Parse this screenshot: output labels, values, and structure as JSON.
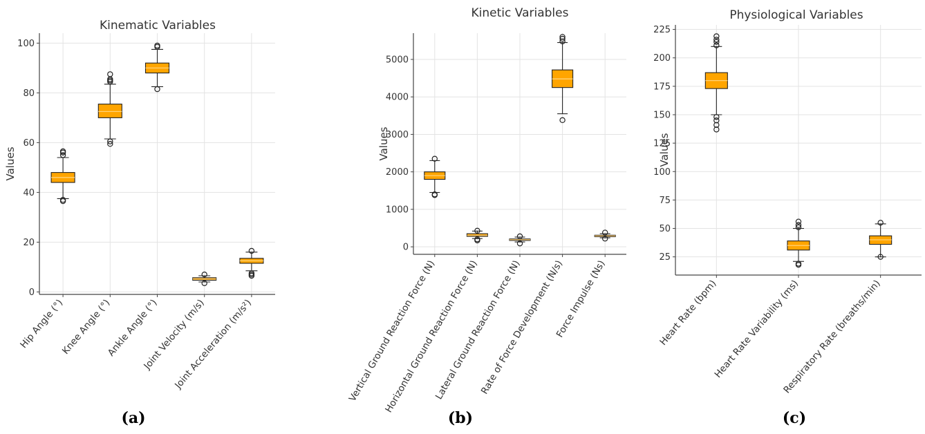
{
  "chart_data": [
    {
      "type": "box",
      "title": "Kinematic Variables",
      "ylabel": "Values",
      "panel_label": "(a)",
      "ylim": [
        -1,
        104
      ],
      "yticks": [
        0,
        20,
        40,
        60,
        80,
        100
      ],
      "categories": [
        "Hip Angle (°)",
        "Knee Angle (°)",
        "Ankle Angle (°)",
        "Joint Velocity (m/s)",
        "Joint Acceleration (m/s²)"
      ],
      "boxes": [
        {
          "whislo": 37.5,
          "q1": 44,
          "med": 46,
          "q3": 48,
          "whishi": 54,
          "fliers": [
            36.5,
            37,
            55,
            56,
            56.5
          ]
        },
        {
          "whislo": 61.5,
          "q1": 70,
          "med": 72.5,
          "q3": 75.5,
          "whishi": 83.5,
          "fliers": [
            59.5,
            60.5,
            84.5,
            85,
            85.5,
            87.5
          ]
        },
        {
          "whislo": 82.5,
          "q1": 88,
          "med": 90,
          "q3": 92,
          "whishi": 97.5,
          "fliers": [
            81.5,
            98.5,
            99
          ]
        },
        {
          "whislo": 4,
          "q1": 4.7,
          "med": 5.2,
          "q3": 5.7,
          "whishi": 6.5,
          "fliers": [
            3.5,
            7
          ]
        },
        {
          "whislo": 8.5,
          "q1": 11.5,
          "med": 12.5,
          "q3": 13.5,
          "whishi": 16,
          "fliers": [
            6.5,
            7,
            7.5,
            16.5
          ]
        }
      ]
    },
    {
      "type": "box",
      "title": "Kinetic Variables",
      "ylabel": "Values",
      "panel_label": "(b)",
      "ylim": [
        -200,
        5700
      ],
      "yticks": [
        0,
        1000,
        2000,
        3000,
        4000,
        5000
      ],
      "categories": [
        "Vertical Ground Reaction Force (N)",
        "Horizontal Ground Reaction Force (N)",
        "Lateral Ground Reaction Force (N)",
        "Rate of Force Development (N/s)",
        "Force Impulse (Ns)"
      ],
      "boxes": [
        {
          "whislo": 1450,
          "q1": 1800,
          "med": 1900,
          "q3": 2000,
          "whishi": 2300,
          "fliers": [
            1380,
            1400,
            2350
          ]
        },
        {
          "whislo": 220,
          "q1": 280,
          "med": 310,
          "q3": 350,
          "whishi": 420,
          "fliers": [
            170,
            200,
            430
          ]
        },
        {
          "whislo": 130,
          "q1": 170,
          "med": 190,
          "q3": 210,
          "whishi": 260,
          "fliers": [
            90,
            280
          ]
        },
        {
          "whislo": 3550,
          "q1": 4250,
          "med": 4480,
          "q3": 4720,
          "whishi": 5450,
          "fliers": [
            3380,
            5480,
            5550,
            5600
          ]
        },
        {
          "whislo": 240,
          "q1": 270,
          "med": 290,
          "q3": 310,
          "whishi": 350,
          "fliers": [
            220,
            380
          ]
        }
      ]
    },
    {
      "type": "box",
      "title": "Physiological Variables",
      "ylabel": "Values",
      "panel_label": "(c)",
      "ylim": [
        9,
        229
      ],
      "yticks": [
        25,
        50,
        75,
        100,
        125,
        150,
        175,
        200,
        225
      ],
      "categories": [
        "Heart Rate (bpm)",
        "Heart Rate Variability (ms)",
        "Respiratory Rate (breaths/min)"
      ],
      "boxes": [
        {
          "whislo": 150,
          "q1": 173,
          "med": 180,
          "q3": 187,
          "whishi": 210,
          "fliers": [
            137,
            141,
            145,
            148,
            211,
            214,
            216,
            219
          ]
        },
        {
          "whislo": 21,
          "q1": 31,
          "med": 35,
          "q3": 39,
          "whishi": 50,
          "fliers": [
            18,
            19,
            51,
            53,
            56
          ]
        },
        {
          "whislo": 25,
          "q1": 36,
          "med": 40,
          "q3": 43.5,
          "whishi": 54,
          "fliers": [
            25,
            55
          ]
        }
      ]
    }
  ]
}
